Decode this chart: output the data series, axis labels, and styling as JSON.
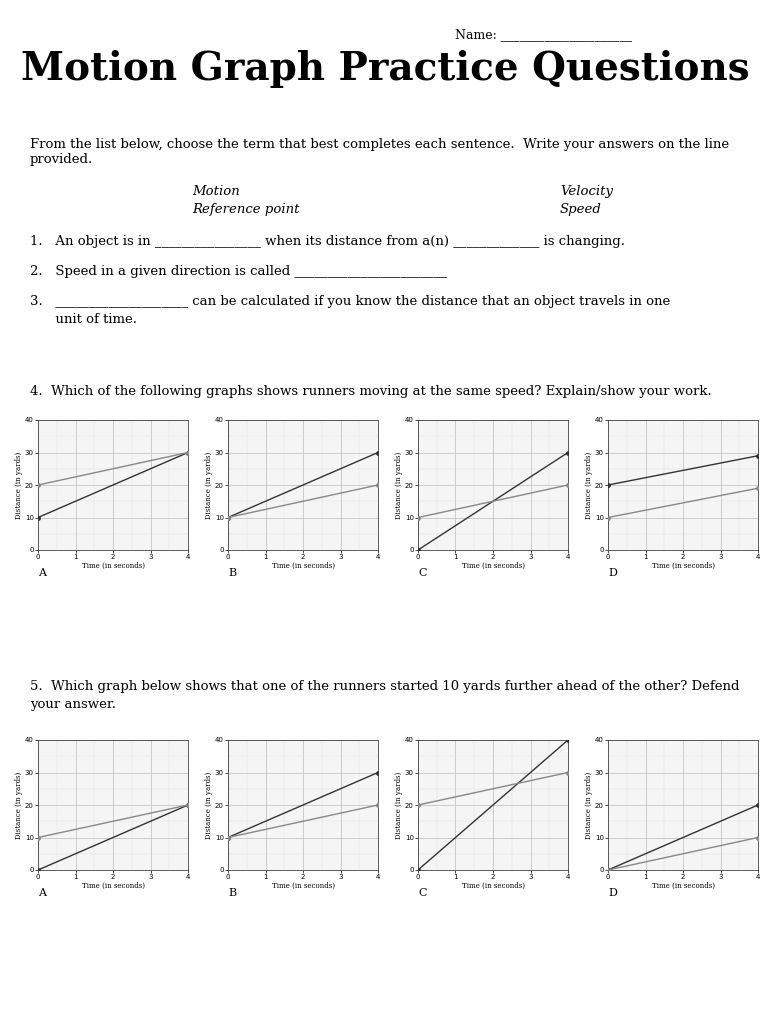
{
  "title": "Motion Graph Practice Questions",
  "name_label": "Name: _____________________",
  "bg_color": "#ffffff",
  "intro_text": "From the list below, choose the term that best completes each sentence.  Write your answers on the line\nprovided.",
  "vocab_col1_line1": "Motion",
  "vocab_col1_line2": "Reference point",
  "vocab_col2_line1": "Velocity",
  "vocab_col2_line2": "Speed",
  "q1": "1.   An object is in ________________ when its distance from a(n) _____________ is changing.",
  "q2": "2.   Speed in a given direction is called _______________________",
  "q3a": "3.   ____________________ can be calculated if you know the distance that an object travels in one",
  "q3b": "      unit of time.",
  "q4_text": "4.  Which of the following graphs shows runners moving at the same speed? Explain/show your work.",
  "q5_text": "5.  Which graph below shows that one of the runners started 10 yards further ahead of the other? Defend",
  "q5_text2": "your answer.",
  "q4_graphs": {
    "A": {
      "line1": [
        [
          0,
          10
        ],
        [
          4,
          30
        ]
      ],
      "line2": [
        [
          0,
          20
        ],
        [
          4,
          30
        ]
      ]
    },
    "B": {
      "line1": [
        [
          0,
          10
        ],
        [
          4,
          30
        ]
      ],
      "line2": [
        [
          0,
          10
        ],
        [
          4,
          20
        ]
      ]
    },
    "C": {
      "line1": [
        [
          0,
          0
        ],
        [
          4,
          30
        ]
      ],
      "line2": [
        [
          0,
          10
        ],
        [
          4,
          20
        ]
      ]
    },
    "D": {
      "line1": [
        [
          0,
          20
        ],
        [
          4,
          29
        ]
      ],
      "line2": [
        [
          0,
          10
        ],
        [
          4,
          19
        ]
      ]
    }
  },
  "q5_graphs": {
    "A": {
      "line1": [
        [
          0,
          0
        ],
        [
          4,
          20
        ]
      ],
      "line2": [
        [
          0,
          10
        ],
        [
          4,
          20
        ]
      ]
    },
    "B": {
      "line1": [
        [
          0,
          10
        ],
        [
          4,
          30
        ]
      ],
      "line2": [
        [
          0,
          10
        ],
        [
          4,
          20
        ]
      ]
    },
    "C": {
      "line1": [
        [
          0,
          0
        ],
        [
          4,
          40
        ]
      ],
      "line2": [
        [
          0,
          20
        ],
        [
          4,
          30
        ]
      ]
    },
    "D": {
      "line1": [
        [
          0,
          0
        ],
        [
          4,
          20
        ]
      ],
      "line2": [
        [
          0,
          0
        ],
        [
          4,
          10
        ]
      ]
    }
  },
  "graph_xlim": [
    0,
    4
  ],
  "graph_ylim": [
    0,
    40
  ],
  "graph_yticks": [
    0,
    10,
    20,
    30,
    40
  ],
  "graph_xticks": [
    0,
    1,
    2,
    3,
    4
  ],
  "graph_xlabel": "Time (in seconds)",
  "graph_ylabel": "Distance (in yards)",
  "line_color1": "#333333",
  "line_color2": "#888888"
}
